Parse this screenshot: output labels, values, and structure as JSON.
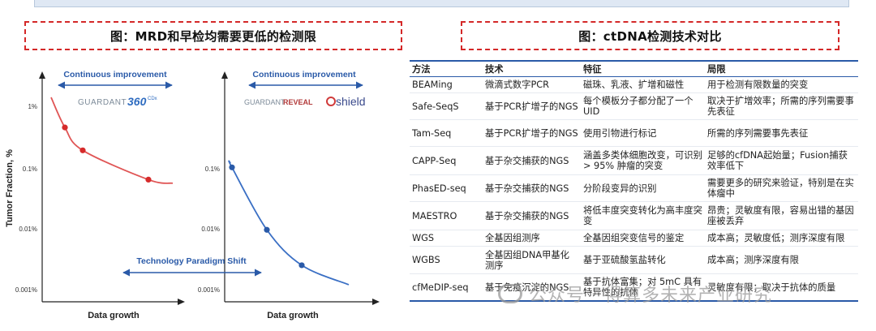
{
  "left_title": "图：MRD和早检均需要更低的检测限",
  "right_title": "图：ctDNA检测技术对比",
  "chart_data": {
    "type": "line",
    "ylabel": "Tumor Fraction, %",
    "y_ticks": [
      "1%",
      "0.1%",
      "0.01%",
      "0.001%"
    ],
    "xlabel_left": "Data growth",
    "xlabel_right": "Data growth",
    "annotations": {
      "continuous_left": "Continuous improvement",
      "continuous_right": "Continuous improvement",
      "paradigm": "Technology Paradigm Shift"
    },
    "logos": {
      "guardant360_text": "GUARDANT",
      "guardant360_num": "360",
      "guardant360_sup": "CDx",
      "guardant_reveal_a": "GUARDANT",
      "guardant_reveal_b": "REVEAL",
      "shield": "shield"
    },
    "series": [
      {
        "points_tf_percent": [
          0.45,
          0.19,
          0.063
        ],
        "colors": {
          "line": "#e05555",
          "point": "#d62b2b"
        }
      },
      {
        "points_tf_percent": [
          0.1,
          0.0095,
          0.0025
        ],
        "colors": {
          "line": "#3a6fc4",
          "point": "#2a5aa8"
        }
      }
    ]
  },
  "table": {
    "headers": [
      "方法",
      "技术",
      "特征",
      "局限"
    ],
    "rows": [
      [
        "BEAMing",
        "微滴式数字PCR",
        "磁珠、乳液、扩增和磁性",
        "用于检测有限数量的突变"
      ],
      [
        "Safe-SeqS",
        "基于PCR扩增子的NGS",
        "每个模板分子都分配了一个UID",
        "取决于扩增效率；所需的序列需要事先表征"
      ],
      [
        "Tam-Seq",
        "基于PCR扩增子的NGS",
        "使用引物进行标记",
        "所需的序列需要事先表征"
      ],
      [
        "CAPP-Seq",
        "基于杂交捕获的NGS",
        "涵盖多类体细胞改变，可识别> 95% 肿瘤的突变",
        "足够的cfDNA起始量；Fusion捕获效率低下"
      ],
      [
        "PhasED-seq",
        "基于杂交捕获的NGS",
        "分阶段变异的识别",
        "需要更多的研究来验证，特别是在实体瘤中"
      ],
      [
        "MAESTRO",
        "基于杂交捕获的NGS",
        "将低丰度突变转化为高丰度突变",
        "昂贵；灵敏度有限，容易出错的基因座被丢弃"
      ],
      [
        "WGS",
        "全基因组测序",
        "全基因组突变信号的鉴定",
        "成本高；灵敏度低；测序深度有限"
      ],
      [
        "WGBS",
        "全基因组DNA甲基化测序",
        "基于亚硫酸氢盐转化",
        "成本高；测序深度有限"
      ],
      [
        "cfMeDIP-seq",
        "基于免疫沉淀的NGS",
        "基于抗体富集；对 5mC 具有特异性的抗体",
        "灵敏度有限；取决于抗体的质量"
      ]
    ]
  },
  "watermark": "公众号 · 得算多未来产业研究"
}
